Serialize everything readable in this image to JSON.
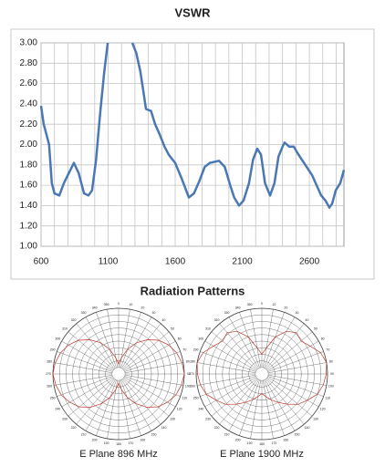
{
  "chart_data": [
    {
      "type": "line",
      "title": "VSWR",
      "x": [
        600,
        620,
        640,
        660,
        680,
        700,
        736,
        770,
        800,
        845,
        880,
        920,
        954,
        980,
        1010,
        1040,
        1070,
        1097,
        1190,
        1280,
        1310,
        1340,
        1360,
        1382,
        1420,
        1450,
        1484,
        1520,
        1552,
        1600,
        1650,
        1702,
        1740,
        1780,
        1820,
        1858,
        1926,
        1970,
        2010,
        2040,
        2076,
        2110,
        2150,
        2180,
        2212,
        2240,
        2270,
        2307,
        2340,
        2370,
        2400,
        2416,
        2450,
        2484,
        2520,
        2560,
        2620,
        2688,
        2720,
        2750,
        2770,
        2797,
        2830,
        2858
      ],
      "series": [
        {
          "name": "VSWR",
          "color": "#4a78b4",
          "values": [
            2.38,
            2.2,
            2.1,
            2.0,
            1.62,
            1.52,
            1.5,
            1.62,
            1.7,
            1.82,
            1.72,
            1.52,
            1.5,
            1.55,
            1.85,
            2.3,
            2.7,
            3.0,
            null,
            3.0,
            2.9,
            2.72,
            2.55,
            2.35,
            2.33,
            2.2,
            2.1,
            1.98,
            1.9,
            1.82,
            1.66,
            1.48,
            1.52,
            1.64,
            1.78,
            1.82,
            1.84,
            1.78,
            1.6,
            1.48,
            1.4,
            1.45,
            1.62,
            1.85,
            1.96,
            1.9,
            1.62,
            1.5,
            1.62,
            1.88,
            1.98,
            2.02,
            1.98,
            1.98,
            1.9,
            1.82,
            1.7,
            1.5,
            1.45,
            1.38,
            1.42,
            1.55,
            1.62,
            1.75
          ]
        }
      ],
      "xlim": [
        600,
        2858
      ],
      "xticks": [
        600,
        1100,
        1600,
        2100,
        2600
      ],
      "xminorticks": [
        700,
        800,
        900,
        1000,
        1200,
        1300,
        1400,
        1500,
        1700,
        1800,
        1900,
        2000,
        2200,
        2300,
        2400,
        2500,
        2700,
        2800
      ],
      "ylim": [
        1,
        3
      ],
      "yticks": [
        {
          "value": 1,
          "label": "1.00"
        },
        {
          "value": 1.2,
          "label": "1.20"
        },
        {
          "value": 1.4,
          "label": "1.40"
        },
        {
          "value": 1.6,
          "label": "1.60"
        },
        {
          "value": 1.8,
          "label": "1.80"
        },
        {
          "value": 2,
          "label": "2.00"
        },
        {
          "value": 2.2,
          "label": "2.20"
        },
        {
          "value": 2.4,
          "label": "2.40"
        },
        {
          "value": 2.6,
          "label": "2.60"
        },
        {
          "value": 2.8,
          "label": "2.80"
        },
        {
          "value": 3,
          "label": "3.00"
        }
      ],
      "grid": true
    },
    {
      "type": "polar",
      "title": "Radiation Patterns",
      "caption": "E Plane 896 MHz",
      "color": "#c0392b",
      "angles": [
        0,
        10,
        20,
        30,
        40,
        50,
        60,
        70,
        80,
        90,
        100,
        110,
        120,
        130,
        140,
        150,
        160,
        170,
        180,
        190,
        200,
        210,
        220,
        230,
        240,
        250,
        260,
        270,
        280,
        290,
        300,
        310,
        320,
        330,
        340,
        350
      ],
      "values": [
        0.15,
        0.25,
        0.4,
        0.55,
        0.68,
        0.8,
        0.88,
        0.94,
        0.98,
        1,
        0.97,
        0.93,
        0.86,
        0.78,
        0.66,
        0.52,
        0.38,
        0.24,
        0.14,
        0.24,
        0.38,
        0.52,
        0.66,
        0.78,
        0.86,
        0.93,
        0.97,
        1,
        0.98,
        0.94,
        0.88,
        0.8,
        0.68,
        0.55,
        0.4,
        0.25
      ],
      "rlim": [
        0,
        1
      ],
      "rgrid": [
        0.1,
        0.2,
        0.3,
        0.4,
        0.5,
        0.6,
        0.7,
        0.8,
        0.9,
        1
      ]
    },
    {
      "type": "polar",
      "caption": "E Plane 1900 MHz",
      "color": "#c0392b",
      "angles": [
        0,
        10,
        20,
        30,
        40,
        50,
        60,
        70,
        80,
        90,
        100,
        110,
        120,
        130,
        140,
        150,
        160,
        170,
        180,
        190,
        200,
        210,
        220,
        230,
        240,
        250,
        260,
        270,
        280,
        290,
        300,
        310,
        320,
        330,
        340,
        350
      ],
      "values": [
        0.3,
        0.4,
        0.6,
        0.75,
        0.82,
        0.78,
        0.85,
        0.95,
        1,
        0.98,
        0.95,
        0.9,
        0.8,
        0.72,
        0.6,
        0.5,
        0.42,
        0.35,
        0.3,
        0.35,
        0.42,
        0.5,
        0.6,
        0.72,
        0.8,
        0.9,
        0.95,
        0.98,
        1,
        0.95,
        0.85,
        0.78,
        0.82,
        0.75,
        0.6,
        0.4
      ],
      "rlim": [
        0,
        1
      ],
      "rgrid": [
        0.1,
        0.2,
        0.3,
        0.4,
        0.5,
        0.6,
        0.7,
        0.8,
        0.9,
        1
      ]
    }
  ]
}
